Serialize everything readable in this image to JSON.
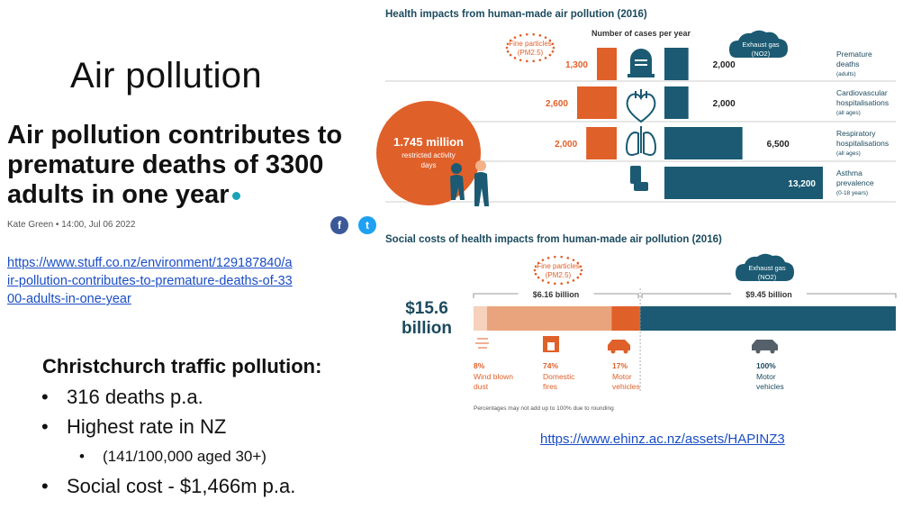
{
  "slide_title": "Air pollution",
  "article": {
    "headline": "Air pollution contributes to premature deaths of 3300 adults in one year",
    "byline": "Kate Green  • 14:00, Jul 06 2022",
    "link": "https://www.stuff.co.nz/environment/129187840/air-pollution-contributes-to-premature-deaths-of-3300-adults-in-one-year",
    "share_facebook_glyph": "f",
    "share_twitter_glyph": "t"
  },
  "summary": {
    "heading": "Christchurch traffic pollution:",
    "bullets": [
      "316 deaths p.a.",
      "Highest rate in NZ"
    ],
    "sub_bullet": "(141/100,000 aged 30+)",
    "last_bullet": "Social cost - $1,466m p.a."
  },
  "source_link": "https://www.ehinz.ac.nz/assets/HAPINZ3",
  "colors": {
    "orange": "#e0602a",
    "teal": "#1b5a72",
    "light_orange": "#eaa47d"
  },
  "chart_data": [
    {
      "type": "bar",
      "title": "Health impacts from human-made air pollution (2016)",
      "subtitle": "Number of cases per year",
      "pm_badge": {
        "line1": "Fine particles",
        "line2": "(PM2.5)"
      },
      "no_badge": {
        "line1": "Exhaust gas",
        "line2": "(NO2)"
      },
      "callout": {
        "value": "1.745 million",
        "line1": "restricted activity",
        "line2": "days"
      },
      "categories": [
        {
          "label": "Premature",
          "label2": "deaths",
          "note": "(adults)",
          "icon": "gravestone-icon"
        },
        {
          "label": "Cardiovascular",
          "label2": "hospitalisations",
          "note": "(all ages)",
          "icon": "heart-icon"
        },
        {
          "label": "Respiratory",
          "label2": "hospitalisations",
          "note": "(all ages)",
          "icon": "lungs-icon"
        },
        {
          "label": "Asthma",
          "label2": "prevalence",
          "note": "(0-18 years)",
          "icon": "inhaler-icon"
        }
      ],
      "series": [
        {
          "values": [
            1300,
            2600,
            2000,
            null
          ],
          "labels": [
            "1,300",
            "2,600",
            "2,000",
            ""
          ]
        },
        {
          "values": [
            2000,
            2000,
            6500,
            13200
          ],
          "labels": [
            "2,000",
            "2,000",
            "6,500",
            "13,200"
          ]
        }
      ]
    },
    {
      "type": "bar",
      "title": "Social costs of health impacts from human-made air pollution (2016)",
      "total": {
        "line1": "$15.6",
        "line2": "billion"
      },
      "pm_badge": {
        "line1": "Fine particles",
        "line2": "(PM2.5)"
      },
      "no_badge": {
        "line1": "Exhaust gas",
        "line2": "(NO2)"
      },
      "groups": [
        {
          "label": "$6.16 billion",
          "value": 6.16
        },
        {
          "label": "$9.45 billion",
          "value": 9.45
        }
      ],
      "segments": [
        {
          "pct": "8%",
          "name": "Wind blown",
          "name2": "dust",
          "share": 0.08,
          "icon": "wind-icon"
        },
        {
          "pct": "74%",
          "name": "Domestic",
          "name2": "fires",
          "share": 0.74,
          "icon": "fireplace-icon"
        },
        {
          "pct": "17%",
          "name": "Motor",
          "name2": "vehicles",
          "share": 0.17,
          "icon": "car-icon"
        },
        {
          "pct": "100%",
          "name": "Motor",
          "name2": "vehicles",
          "share": 1.0,
          "icon": "car-icon"
        }
      ],
      "footnote": "Percentages may not add up to 100% due to rounding"
    }
  ]
}
